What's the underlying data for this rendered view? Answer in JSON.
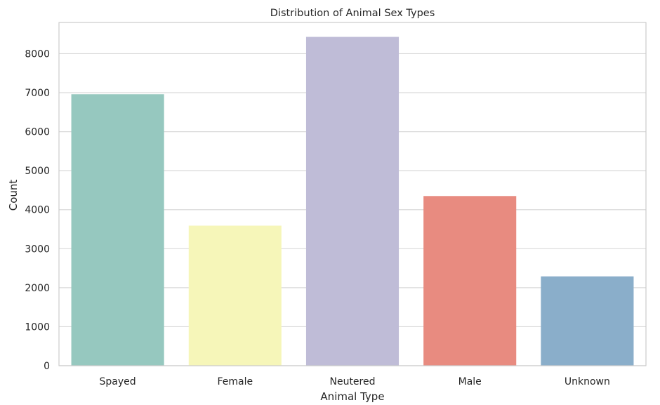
{
  "chart_data": {
    "type": "bar",
    "title": "Distribution of Animal Sex Types",
    "xlabel": "Animal Type",
    "ylabel": "Count",
    "categories": [
      "Spayed",
      "Female",
      "Neutered",
      "Male",
      "Unknown"
    ],
    "values": [
      6960,
      3590,
      8430,
      4350,
      2290
    ],
    "colors": [
      "#96c8bf",
      "#f6f6b9",
      "#bfbcd7",
      "#e88b80",
      "#8aaeca"
    ],
    "ylim": [
      0,
      8800
    ],
    "yticks": [
      0,
      1000,
      2000,
      3000,
      4000,
      5000,
      6000,
      7000,
      8000
    ],
    "grid": true,
    "gridColor": "#d9d9d9",
    "legend": "none"
  }
}
